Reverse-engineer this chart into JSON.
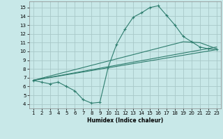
{
  "bg_color": "#c8e8e8",
  "grid_color": "#a8c8c8",
  "line_color": "#2e7d6e",
  "curve1_x": [
    1,
    2,
    3,
    4,
    5,
    6,
    7,
    8,
    9,
    10,
    11,
    12,
    13,
    14,
    15,
    16,
    17,
    18,
    19,
    20,
    21,
    22,
    23
  ],
  "curve1_y": [
    6.7,
    6.5,
    6.3,
    6.5,
    6.0,
    5.5,
    4.5,
    4.1,
    4.2,
    8.2,
    10.8,
    12.5,
    13.9,
    14.4,
    15.0,
    15.2,
    14.1,
    13.0,
    11.7,
    11.1,
    10.5,
    10.3,
    10.2
  ],
  "line1_x": [
    1,
    23
  ],
  "line1_y": [
    6.7,
    10.2
  ],
  "line2_x": [
    1,
    19,
    21,
    23
  ],
  "line2_y": [
    6.7,
    11.1,
    11.0,
    10.3
  ],
  "line3_x": [
    1,
    23
  ],
  "line3_y": [
    6.7,
    10.5
  ],
  "xlabel": "Humidex (Indice chaleur)",
  "xlim": [
    0.5,
    23.5
  ],
  "ylim": [
    3.5,
    15.7
  ],
  "xtick_labels": [
    "1",
    "2",
    "3",
    "4",
    "5",
    "6",
    "7",
    "8",
    "9",
    "10",
    "11",
    "12",
    "13",
    "14",
    "15",
    "16",
    "17",
    "18",
    "19",
    "20",
    "21",
    "22",
    "23"
  ],
  "xticks": [
    1,
    2,
    3,
    4,
    5,
    6,
    7,
    8,
    9,
    10,
    11,
    12,
    13,
    14,
    15,
    16,
    17,
    18,
    19,
    20,
    21,
    22,
    23
  ],
  "yticks": [
    4,
    5,
    6,
    7,
    8,
    9,
    10,
    11,
    12,
    13,
    14,
    15
  ]
}
